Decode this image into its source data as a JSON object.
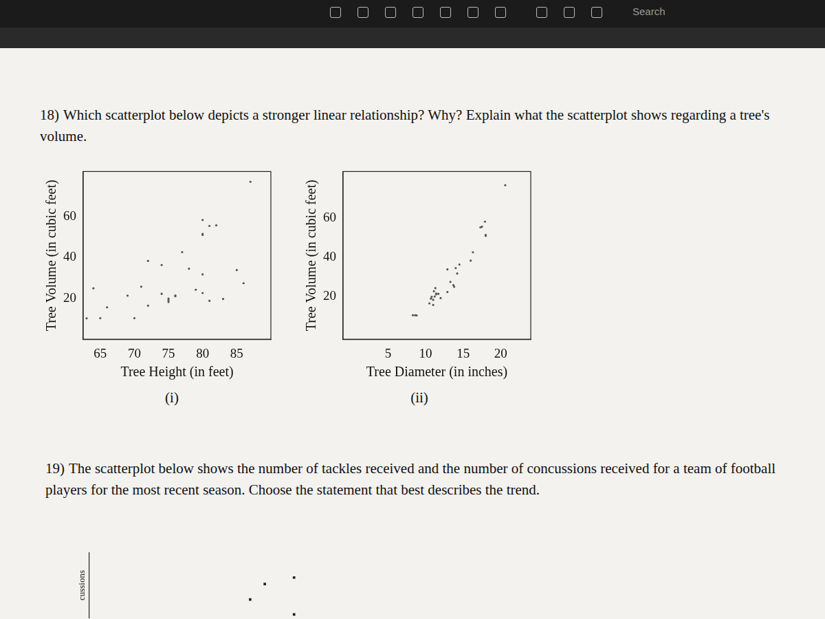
{
  "header": {
    "search": "Search"
  },
  "questions": [
    {
      "number": "18)",
      "text": "Which scatterplot below depicts a stronger linear relationship? Why? Explain what the scatterplot shows regarding a tree's volume."
    },
    {
      "number": "19)",
      "text": "The scatterplot below shows the number of tackles received and the number of concussions received for a team of football players for the most recent season. Choose the statement that best describes the trend."
    }
  ],
  "chart_data": [
    {
      "type": "scatter",
      "x_label": "Tree Height (in feet)",
      "y_label": "Tree Volume (in cubic feet)",
      "caption": "(i)",
      "x": [
        70,
        65,
        63,
        72,
        81,
        83,
        66,
        75,
        80,
        75,
        79,
        76,
        76,
        69,
        75,
        74,
        85,
        86,
        71,
        64,
        78,
        80,
        74,
        72,
        77,
        81,
        82,
        80,
        80,
        80,
        87
      ],
      "values": [
        10.3,
        10.3,
        10.2,
        16.4,
        18.8,
        19.7,
        15.6,
        18.2,
        22.6,
        19.9,
        24.2,
        21.0,
        21.4,
        21.3,
        19.1,
        22.2,
        33.8,
        27.4,
        25.7,
        24.9,
        34.5,
        31.7,
        36.3,
        38.3,
        42.6,
        55.4,
        55.7,
        58.3,
        51.5,
        51.0,
        77.0
      ],
      "color": "#555555",
      "marker": "circle",
      "grid": false,
      "xlim": [
        62.5,
        90
      ],
      "xticks": [
        65,
        70,
        75,
        80,
        85
      ],
      "ylim": [
        0,
        82
      ],
      "yticks": [
        20,
        40,
        60
      ]
    },
    {
      "type": "scatter",
      "x_label": "Tree Diameter (in inches)",
      "y_label": "Tree Volume (in cubic feet)",
      "caption": "(ii)",
      "x": [
        8.3,
        8.6,
        8.8,
        10.5,
        10.7,
        10.8,
        11.0,
        11.0,
        11.1,
        11.2,
        11.3,
        11.4,
        11.4,
        11.7,
        12.0,
        12.9,
        12.9,
        13.3,
        13.7,
        13.8,
        14.0,
        14.2,
        14.5,
        16.0,
        16.3,
        17.3,
        17.5,
        17.9,
        18.0,
        18.0,
        20.6
      ],
      "values": [
        10.3,
        10.3,
        10.2,
        16.4,
        18.8,
        19.7,
        15.6,
        18.2,
        22.6,
        19.9,
        24.2,
        21.0,
        21.4,
        21.3,
        19.1,
        22.2,
        33.8,
        27.4,
        25.7,
        24.9,
        34.5,
        31.7,
        36.3,
        38.3,
        42.6,
        55.4,
        55.7,
        58.3,
        51.5,
        51.0,
        77.0
      ],
      "color": "#555555",
      "marker": "circle",
      "grid": false,
      "xlim": [
        -1,
        24
      ],
      "xticks": [
        5,
        10,
        15,
        20
      ],
      "ylim": [
        -2,
        84
      ],
      "yticks": [
        20,
        40,
        60
      ]
    },
    {
      "type": "scatter",
      "y_label": "cussions",
      "x": [
        4.4,
        4.8,
        5.6,
        5.6
      ],
      "values": [
        2.8,
        5.2,
        6.2,
        0.5
      ],
      "color": "#222222",
      "marker": "square",
      "grid": false,
      "tick_labels": false,
      "xlim": [
        0,
        10
      ],
      "ylim": [
        0,
        10
      ]
    }
  ]
}
